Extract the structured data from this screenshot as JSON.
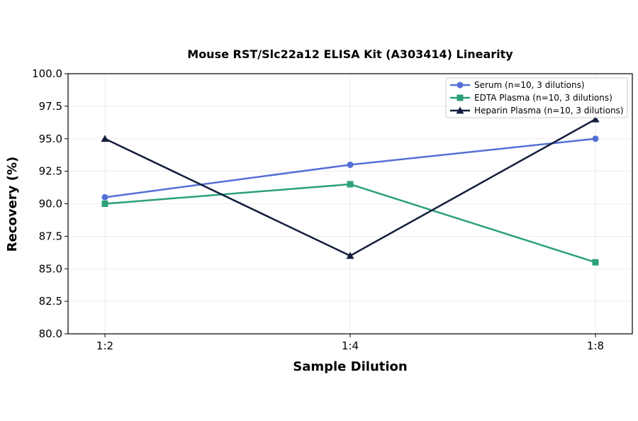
{
  "chart_data": {
    "type": "line",
    "title": "Mouse RST/Slc22a12 ELISA Kit (A303414) Linearity",
    "xlabel": "Sample Dilution",
    "ylabel": "Recovery (%)",
    "categories": [
      "1:2",
      "1:4",
      "1:8"
    ],
    "ylim": [
      80.0,
      100.0
    ],
    "yticks": [
      "80.0",
      "82.5",
      "85.0",
      "87.5",
      "90.0",
      "92.5",
      "95.0",
      "97.5",
      "100.0"
    ],
    "grid": true,
    "legend_position": "top-right",
    "series": [
      {
        "name": "Serum (n=10, 3 dilutions)",
        "values": [
          90.5,
          93.0,
          95.0
        ],
        "color": "#5470d6",
        "marker": "circle"
      },
      {
        "name": "EDTA Plasma (n=10, 3 dilutions)",
        "values": [
          90.0,
          91.5,
          85.5
        ],
        "color": "#2ca07a",
        "marker": "square"
      },
      {
        "name": "Heparin Plasma (n=10, 3 dilutions)",
        "values": [
          95.0,
          86.0,
          96.5
        ],
        "color": "#141e3c",
        "marker": "triangle"
      }
    ]
  }
}
